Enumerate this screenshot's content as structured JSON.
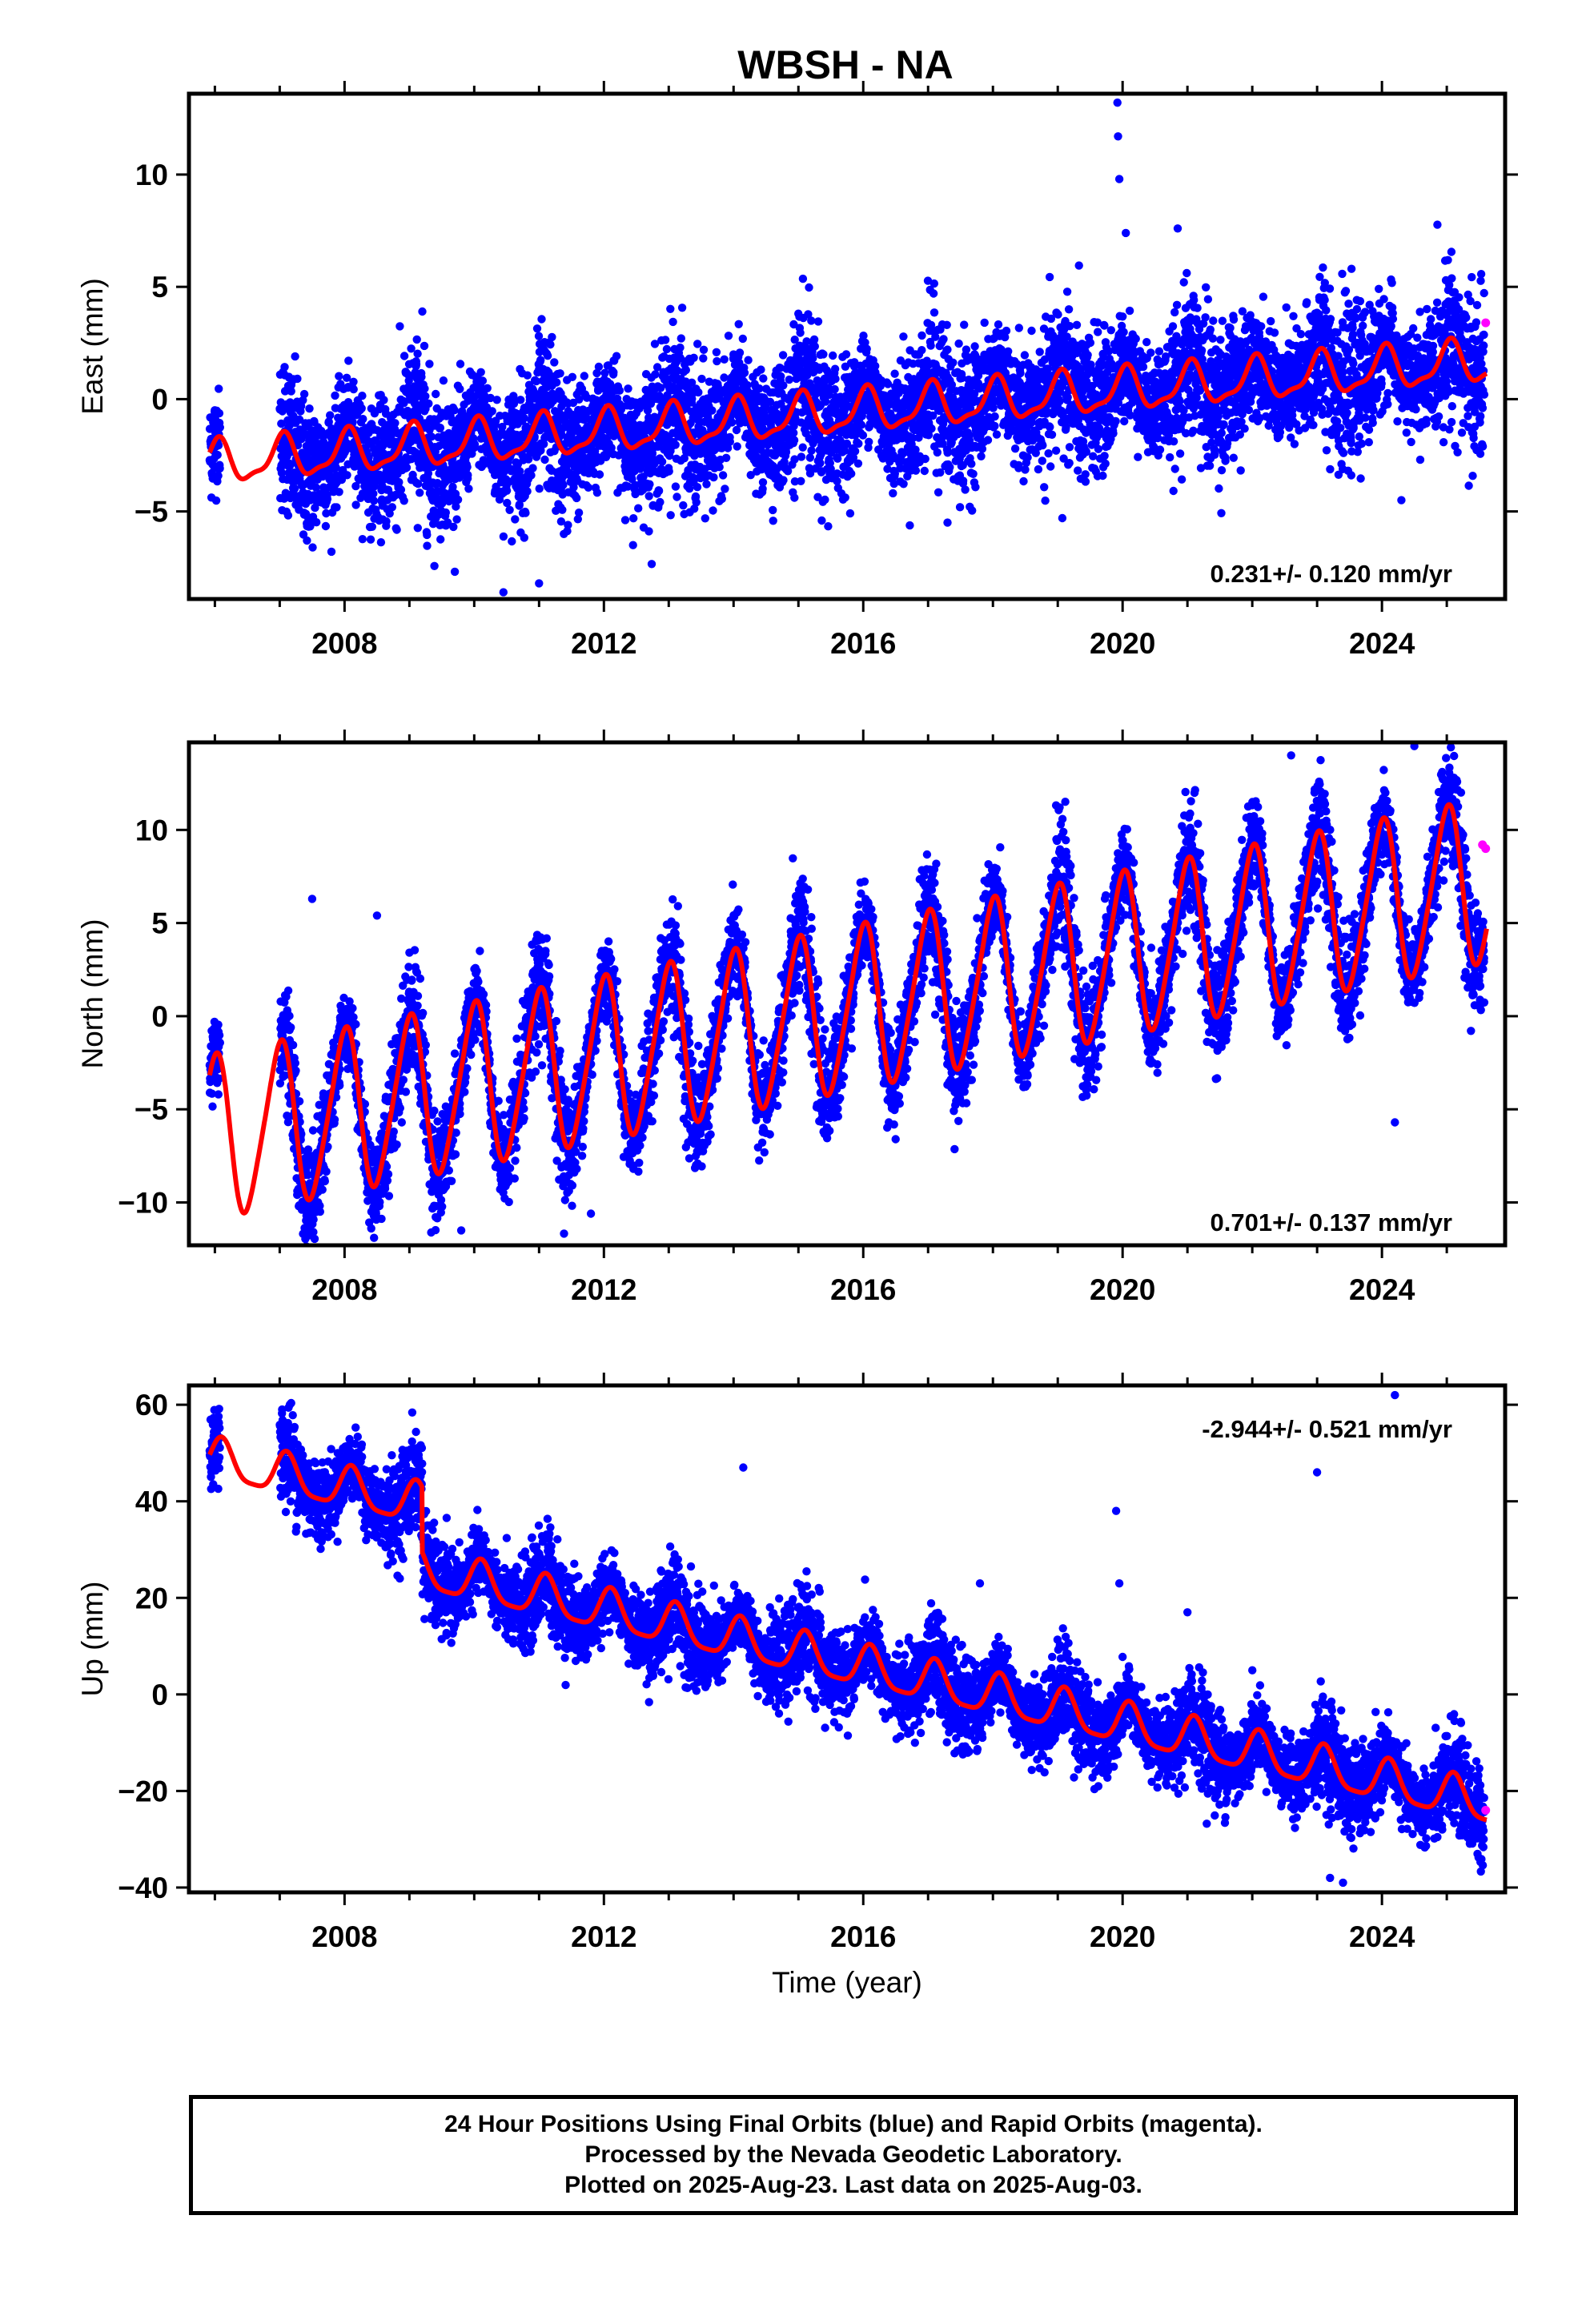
{
  "title": "WBSH - NA",
  "colors": {
    "final": "#0000ff",
    "rapid": "#ff00ff",
    "model": "#ff0000",
    "frame": "#000000"
  },
  "chart_data": [
    {
      "type": "scatter",
      "ylabel": "East (mm)",
      "xlim": [
        2005.6,
        2025.9
      ],
      "ylim": [
        -8.9,
        13.6
      ],
      "yticks": [
        -5,
        0,
        5,
        10
      ],
      "xticks": [
        2008,
        2012,
        2016,
        2020,
        2024
      ],
      "rate_text": "0.231+/- 0.120 mm/yr",
      "rate": 0.231,
      "model": {
        "t0": 2016,
        "offset": -0.55,
        "rate": 0.231,
        "amp1": 0.9,
        "phase1": 1.3,
        "amp2": 0.3,
        "phase2": 0.5
      },
      "scatter_spread": 1.4,
      "outliers": [
        [
          2019.92,
          13.2
        ],
        [
          2019.93,
          11.7
        ],
        [
          2019.95,
          9.8
        ],
        [
          2020.05,
          7.4
        ],
        [
          2020.85,
          7.6
        ],
        [
          2010.45,
          -8.6
        ],
        [
          2011.0,
          -8.2
        ],
        [
          2012.45,
          -6.5
        ],
        [
          2019.07,
          -5.3
        ],
        [
          2017.3,
          -5.5
        ],
        [
          2009.2,
          3.9
        ],
        [
          2024.3,
          -4.5
        ]
      ],
      "rapid_points": [
        [
          2025.6,
          3.4
        ]
      ]
    },
    {
      "type": "scatter",
      "ylabel": "North (mm)",
      "xlim": [
        2005.6,
        2025.9
      ],
      "ylim": [
        -12.3,
        14.7
      ],
      "yticks": [
        -10,
        -5,
        0,
        5,
        10
      ],
      "xticks": [
        2008,
        2012,
        2016,
        2020,
        2024
      ],
      "rate_text": "0.701+/- 0.137 mm/yr",
      "rate": 0.701,
      "model": {
        "t0": 2016,
        "offset": 0.5,
        "rate": 0.701,
        "amp1": 4.3,
        "phase1": 1.6,
        "amp2": 0.6,
        "phase2": 0.2
      },
      "scatter_spread": 1.3,
      "outliers": [
        [
          2007.5,
          6.3
        ],
        [
          2008.5,
          5.4
        ],
        [
          2009.8,
          -11.5
        ],
        [
          2011.8,
          -10.6
        ],
        [
          2024.2,
          -5.7
        ],
        [
          2024.5,
          14.5
        ],
        [
          2022.6,
          14.0
        ]
      ],
      "rapid_points": [
        [
          2025.55,
          9.2
        ],
        [
          2025.6,
          9.0
        ]
      ]
    },
    {
      "type": "scatter",
      "ylabel": "Up (mm)",
      "xlabel": "Time (year)",
      "xlim": [
        2005.6,
        2025.9
      ],
      "ylim": [
        -41,
        64
      ],
      "yticks": [
        -40,
        -20,
        0,
        20,
        40,
        60
      ],
      "xticks": [
        2008,
        2012,
        2016,
        2020,
        2024
      ],
      "rate_text": "-2.944+/- 0.521 mm/yr",
      "rate": -2.944,
      "model": {
        "t0": 2016,
        "offset": 5.5,
        "rate": -2.944,
        "amp1": 4.2,
        "phase1": 0.9,
        "amp2": 1.0,
        "phase2": 0.3,
        "step_time": 2009.2,
        "step": -13.5
      },
      "scatter_spread": 4.2,
      "outliers": [
        [
          2014.15,
          47.0
        ],
        [
          2019.9,
          38.0
        ],
        [
          2023.0,
          46.0
        ],
        [
          2024.2,
          62.0
        ],
        [
          2021.0,
          17.0
        ],
        [
          2023.2,
          -38.0
        ],
        [
          2023.4,
          -39.0
        ],
        [
          2019.95,
          23.0
        ],
        [
          2017.8,
          23.0
        ],
        [
          2022.0,
          5.0
        ]
      ],
      "rapid_points": [
        [
          2025.6,
          -24.0
        ]
      ]
    }
  ],
  "footer": {
    "line1": "24 Hour Positions Using Final Orbits (blue) and Rapid Orbits (magenta).",
    "line2": "Processed by the Nevada Geodetic Laboratory.",
    "line3": "Plotted on 2025-Aug-23. Last data on 2025-Aug-03."
  }
}
